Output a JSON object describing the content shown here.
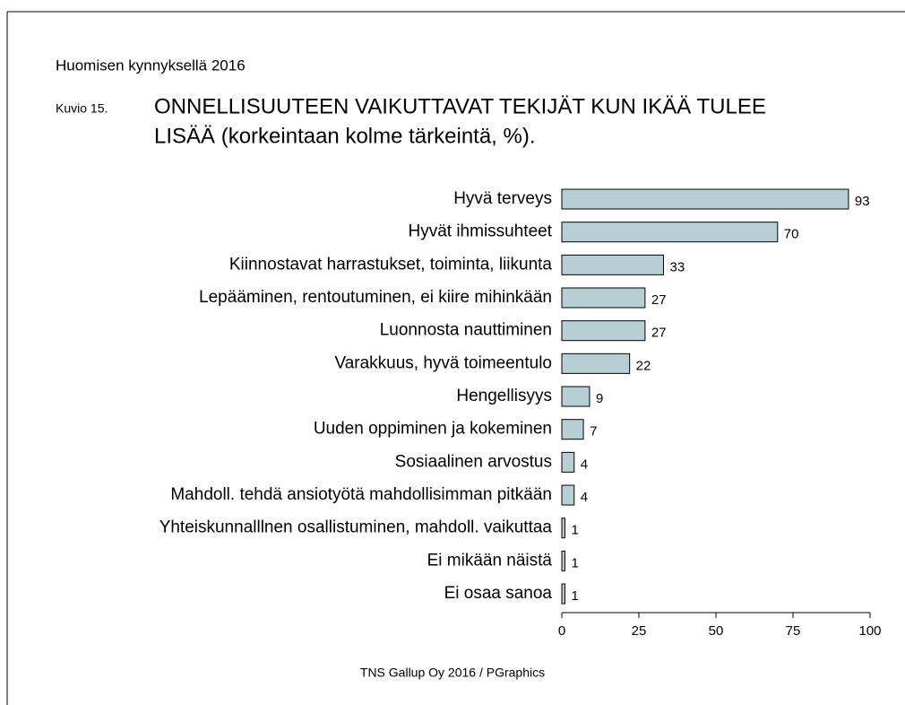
{
  "chart_data": {
    "type": "bar",
    "orientation": "horizontal",
    "header": "Huomisen kynnyksellä 2016",
    "figure_label": "Kuvio 15.",
    "title": [
      "ONNELLISUUTEEN VAIKUTTAVAT TEKIJÄT KUN IKÄÄ TULEE",
      "LISÄÄ (korkeintaan kolme tärkeintä, %)."
    ],
    "source": "TNS Gallup Oy 2016 / PGraphics",
    "categories": [
      "Hyvä terveys",
      "Hyvät ihmissuhteet",
      "Kiinnostavat harrastukset, toiminta, liikunta",
      "Lepääminen, rentoutuminen, ei kiire mihinkään",
      "Luonnosta nauttiminen",
      "Varakkuus, hyvä toimeentulo",
      "Hengellisyys",
      "Uuden oppiminen ja kokeminen",
      "Sosiaalinen arvostus",
      "Mahdoll. tehdä ansiotyötä mahdollisimman pitkään",
      "Yhteiskunnalllnen osallistuminen, mahdoll. vaikuttaa",
      "Ei mikään näistä",
      "Ei osaa sanoa"
    ],
    "values": [
      93,
      70,
      33,
      27,
      27,
      22,
      9,
      7,
      4,
      4,
      1,
      1,
      1
    ],
    "color": "#b7cfd4",
    "xlim": [
      0,
      100
    ],
    "xticks": [
      0,
      25,
      50,
      75,
      100
    ],
    "grid": false
  }
}
